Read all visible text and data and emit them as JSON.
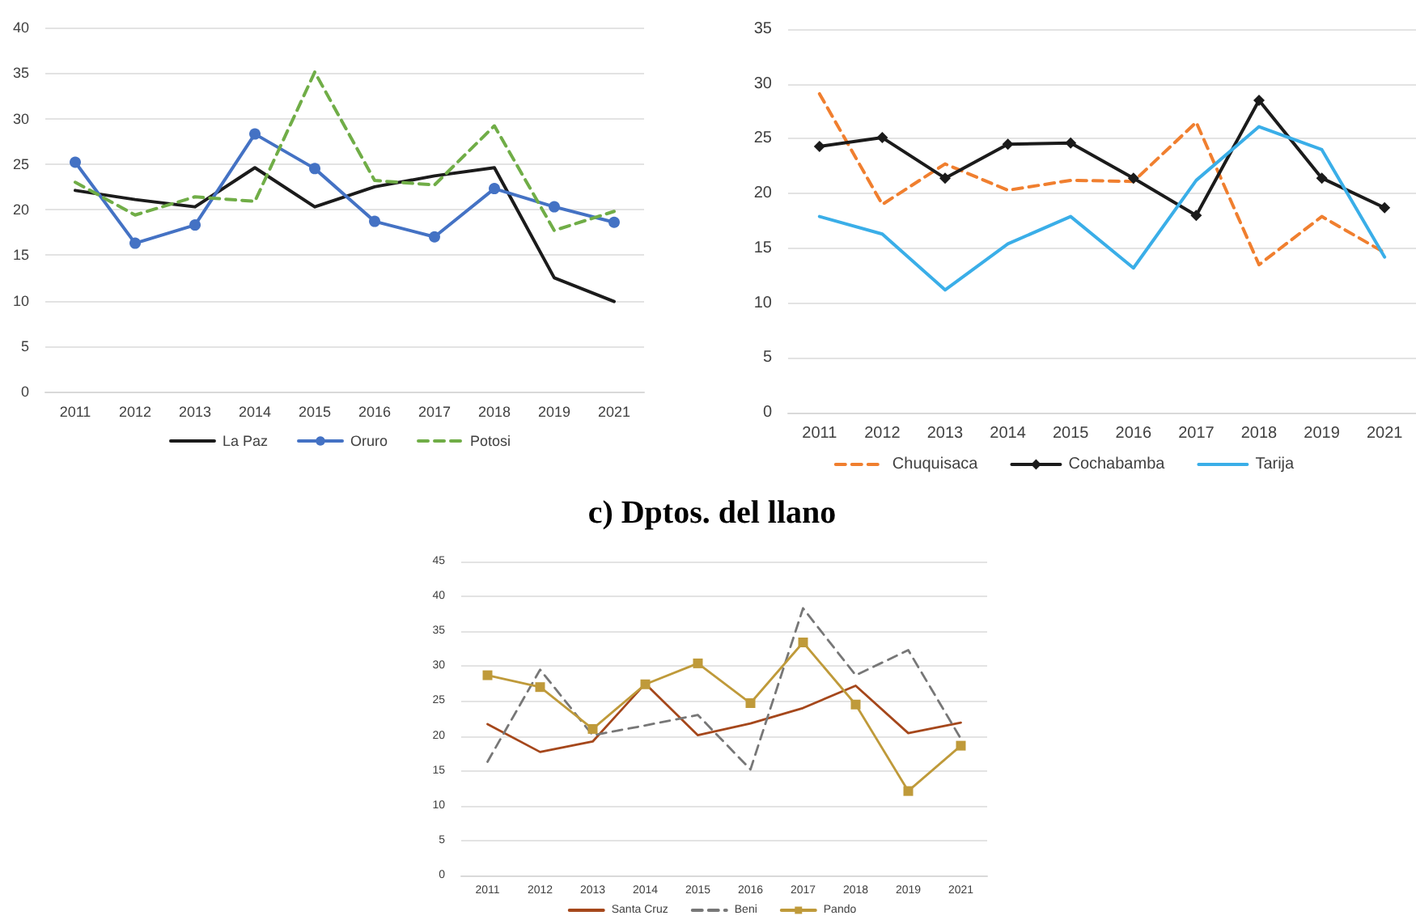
{
  "chart_data": [
    {
      "type": "line",
      "categories": [
        "2011",
        "2012",
        "2013",
        "2014",
        "2015",
        "2016",
        "2017",
        "2018",
        "2019",
        "2021"
      ],
      "series": [
        {
          "name": "La Paz",
          "color": "#1b1b1b",
          "marker": "none",
          "line_style": "solid",
          "values": [
            22.1,
            21.1,
            20.3,
            24.6,
            20.3,
            22.5,
            23.7,
            24.6,
            12.5,
            9.9
          ]
        },
        {
          "name": "Oruro",
          "color": "#4472c4",
          "marker": "circle",
          "line_style": "solid",
          "values": [
            25.2,
            16.3,
            18.3,
            28.3,
            24.5,
            18.7,
            17.0,
            22.3,
            20.3,
            18.6
          ]
        },
        {
          "name": "Potosi",
          "color": "#70ad47",
          "marker": "none",
          "line_style": "dashed",
          "values": [
            23.0,
            19.4,
            21.4,
            20.9,
            35.1,
            23.2,
            22.7,
            29.2,
            17.7,
            19.8
          ]
        }
      ],
      "ylim": [
        0,
        40
      ],
      "yticks": [
        0,
        5,
        10,
        15,
        20,
        25,
        30,
        35,
        40
      ],
      "grid": "y",
      "legend": "bottom"
    },
    {
      "type": "line",
      "categories": [
        "2011",
        "2012",
        "2013",
        "2014",
        "2015",
        "2016",
        "2017",
        "2018",
        "2019",
        "2021"
      ],
      "series": [
        {
          "name": "Chuquisaca",
          "color": "#f07f2f",
          "marker": "none",
          "line_style": "dashed",
          "values": [
            29.1,
            19.0,
            22.7,
            20.3,
            21.2,
            21.1,
            26.5,
            13.5,
            17.9,
            14.6
          ]
        },
        {
          "name": "Cochabamba",
          "color": "#1b1b1b",
          "marker": "diamond",
          "line_style": "solid",
          "values": [
            24.3,
            25.1,
            21.4,
            24.5,
            24.6,
            21.4,
            18.0,
            28.5,
            21.4,
            18.7
          ]
        },
        {
          "name": "Tarija",
          "color": "#3aaee8",
          "marker": "none",
          "line_style": "solid",
          "values": [
            17.9,
            16.3,
            11.2,
            15.4,
            17.9,
            13.2,
            21.2,
            26.1,
            24.0,
            14.2
          ]
        }
      ],
      "ylim": [
        0,
        35
      ],
      "yticks": [
        0,
        5,
        10,
        15,
        20,
        25,
        30,
        35
      ],
      "grid": "y",
      "legend": "bottom"
    },
    {
      "type": "line",
      "title": "c) Dptos. del llano",
      "categories": [
        "2011",
        "2012",
        "2013",
        "2014",
        "2015",
        "2016",
        "2017",
        "2018",
        "2019",
        "2021"
      ],
      "series": [
        {
          "name": "Santa Cruz",
          "color": "#a5471b",
          "marker": "none",
          "line_style": "solid",
          "values": [
            21.7,
            17.7,
            19.2,
            27.5,
            20.1,
            21.8,
            24.0,
            27.2,
            20.4,
            21.9
          ]
        },
        {
          "name": "Beni",
          "color": "#777777",
          "marker": "none",
          "line_style": "dashed",
          "values": [
            16.3,
            29.5,
            20.1,
            21.5,
            23.0,
            15.2,
            38.3,
            28.7,
            32.3,
            19.6
          ]
        },
        {
          "name": "Pando",
          "color": "#bf9a3a",
          "marker": "square",
          "line_style": "solid",
          "values": [
            28.7,
            27.0,
            21.0,
            27.4,
            30.4,
            24.7,
            33.4,
            24.5,
            12.1,
            18.6
          ]
        }
      ],
      "ylim": [
        0,
        45
      ],
      "yticks": [
        0,
        5,
        10,
        15,
        20,
        25,
        30,
        35,
        40,
        45
      ],
      "grid": "y",
      "legend": "bottom"
    }
  ]
}
